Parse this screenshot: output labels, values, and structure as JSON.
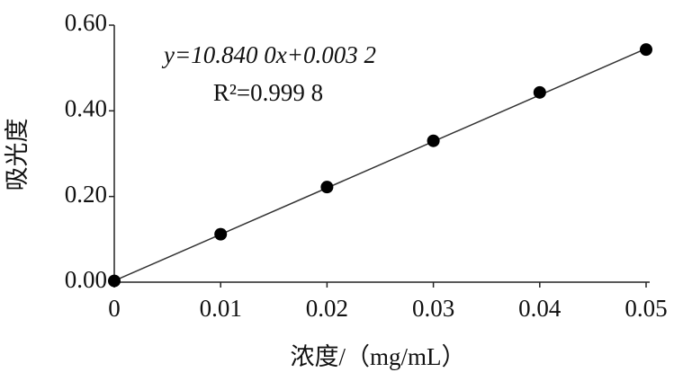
{
  "chart_data": {
    "type": "scatter",
    "x_label": "浓度/（mg/mL）",
    "y_label": "吸光度",
    "annotations": [
      "y=10.840 0x+0.003 2",
      "R²=0.999 8"
    ],
    "x": [
      0,
      0.01,
      0.02,
      0.03,
      0.04,
      0.05
    ],
    "values": [
      0.003,
      0.112,
      0.222,
      0.33,
      0.443,
      0.543
    ],
    "color": "#000000",
    "trendline": {
      "x": [
        0,
        0.05
      ],
      "values": [
        0.0032,
        0.5452
      ]
    },
    "xlim": [
      0,
      0.05
    ],
    "xticks": [
      0,
      0.01,
      0.02,
      0.03,
      0.04,
      0.05
    ],
    "ylim": [
      0,
      0.6
    ],
    "yticks": [
      {
        "value": 0,
        "label": "0.00"
      },
      {
        "value": 0.2,
        "label": "0.20"
      },
      {
        "value": 0.4,
        "label": "0.40"
      },
      {
        "value": 0.6,
        "label": "0.60"
      }
    ]
  }
}
